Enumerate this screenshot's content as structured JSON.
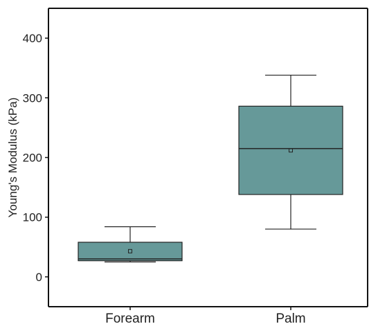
{
  "chart_data": {
    "type": "box",
    "ylabel": "Young's Modulus (kPa)",
    "xlabel": "",
    "ylim": [
      -50,
      450
    ],
    "yticks": [
      0,
      100,
      200,
      300,
      400
    ],
    "ytick_labels": [
      "0",
      "100",
      "200",
      "300",
      "400"
    ],
    "categories": [
      "Forearm",
      "Palm"
    ],
    "series": [
      {
        "category": "Forearm",
        "whisker_low": 25,
        "q1": 27,
        "median": 30,
        "q3": 58,
        "whisker_high": 84,
        "mean": 43
      },
      {
        "category": "Palm",
        "whisker_low": 80,
        "q1": 138,
        "median": 215,
        "q3": 286,
        "whisker_high": 338,
        "mean": 212
      }
    ],
    "box_color": "#669999",
    "line_color": "#222222",
    "grid": false,
    "legend": "none"
  }
}
